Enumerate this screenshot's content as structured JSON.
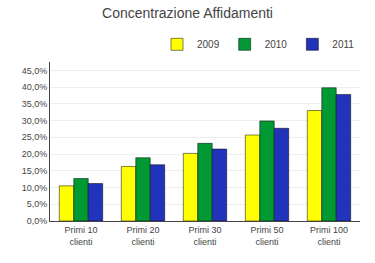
{
  "chart_data": {
    "type": "bar",
    "title": "Concentrazione Affidamenti",
    "categories": [
      "Primi 10\nclienti",
      "Primi 20\nclienti",
      "Primi 30\nclienti",
      "Primi 50\nclienti",
      "Primi 100\nclienti"
    ],
    "series": [
      {
        "name": "2009",
        "color": "#FFFF00",
        "values": [
          0.105,
          0.163,
          0.202,
          0.257,
          0.33
        ]
      },
      {
        "name": "2010",
        "color": "#009933",
        "values": [
          0.127,
          0.189,
          0.232,
          0.299,
          0.398
        ]
      },
      {
        "name": "2011",
        "color": "#2233BB",
        "values": [
          0.112,
          0.168,
          0.215,
          0.277,
          0.378
        ]
      }
    ],
    "ylim": [
      0,
      0.475
    ],
    "yticks": [
      {
        "value": 0.0,
        "label": "0,0%"
      },
      {
        "value": 0.05,
        "label": "5,0%"
      },
      {
        "value": 0.1,
        "label": "10,0%"
      },
      {
        "value": 0.15,
        "label": "15,0%"
      },
      {
        "value": 0.2,
        "label": "20,0%"
      },
      {
        "value": 0.25,
        "label": "25,0%"
      },
      {
        "value": 0.3,
        "label": "30,0%"
      },
      {
        "value": 0.35,
        "label": "35,0%"
      },
      {
        "value": 0.4,
        "label": "40,0%"
      },
      {
        "value": 0.45,
        "label": "45,0%"
      }
    ],
    "grid": true,
    "legend": "upper right"
  }
}
